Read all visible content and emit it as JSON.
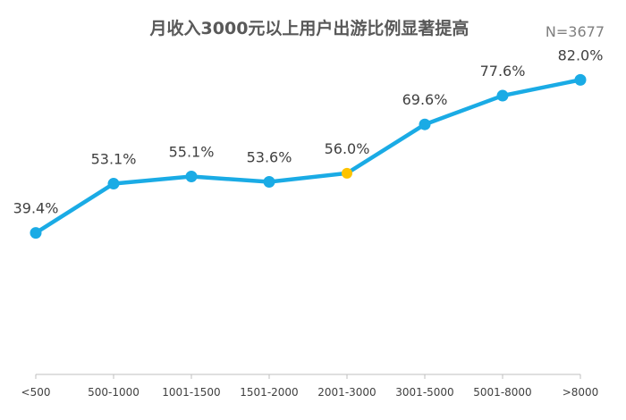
{
  "chart_data": {
    "type": "line",
    "title": "月收入3000元以上用户出游比例显著提高",
    "sample_size": "N=3677",
    "categories": [
      "<500",
      "500-1000",
      "1001-1500",
      "1501-2000",
      "2001-3000",
      "3001-5000",
      "5001-8000",
      ">8000"
    ],
    "values": [
      39.4,
      53.1,
      55.1,
      53.6,
      56.0,
      69.6,
      77.6,
      82.0
    ],
    "value_labels": [
      "39.4%",
      "53.1%",
      "55.1%",
      "53.6%",
      "56.0%",
      "69.6%",
      "77.6%",
      "82.0%"
    ],
    "highlight_index": 4,
    "ylim": [
      0,
      100
    ],
    "grid": false,
    "legend": "none",
    "colors": {
      "line": "#1aabe5",
      "highlight": "#fdc300",
      "axis": "#bfbfbf"
    }
  }
}
